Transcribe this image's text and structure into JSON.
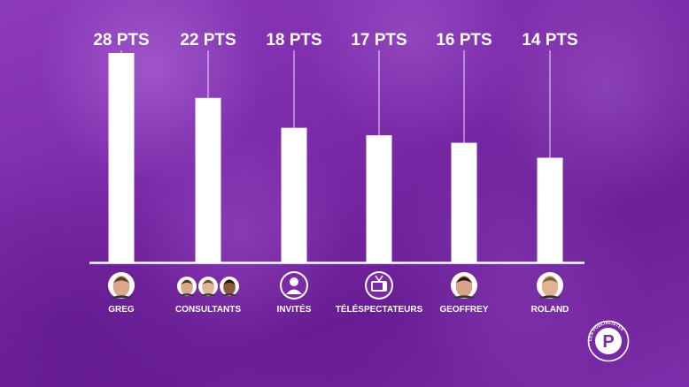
{
  "chart_data": {
    "type": "bar",
    "categories": [
      "GREG",
      "CONSULTANTS",
      "INVITÉS",
      "TÉLÉSPECTATEURS",
      "GEOFFREY",
      "ROLAND"
    ],
    "values": [
      28,
      22,
      18,
      17,
      16,
      14
    ],
    "value_labels": [
      "28 PTS",
      "22 PTS",
      "18 PTS",
      "17 PTS",
      "16 PTS",
      "14 PTS"
    ],
    "icons": [
      "greg-avatar-icon",
      "consultants-avatars-icon",
      "guest-person-icon",
      "tv-icon",
      "geoffrey-avatar-icon",
      "roland-avatar-icon"
    ],
    "ylim": [
      0,
      28
    ],
    "grid": false,
    "legend": "none",
    "colors": {
      "bar": "#ffffff",
      "background": "#7a2fa6",
      "text": "#ffffff",
      "badge": "#7b2aa8"
    }
  },
  "logo": {
    "letter": "P",
    "ring_text": "LES PUBLIALISTES"
  }
}
